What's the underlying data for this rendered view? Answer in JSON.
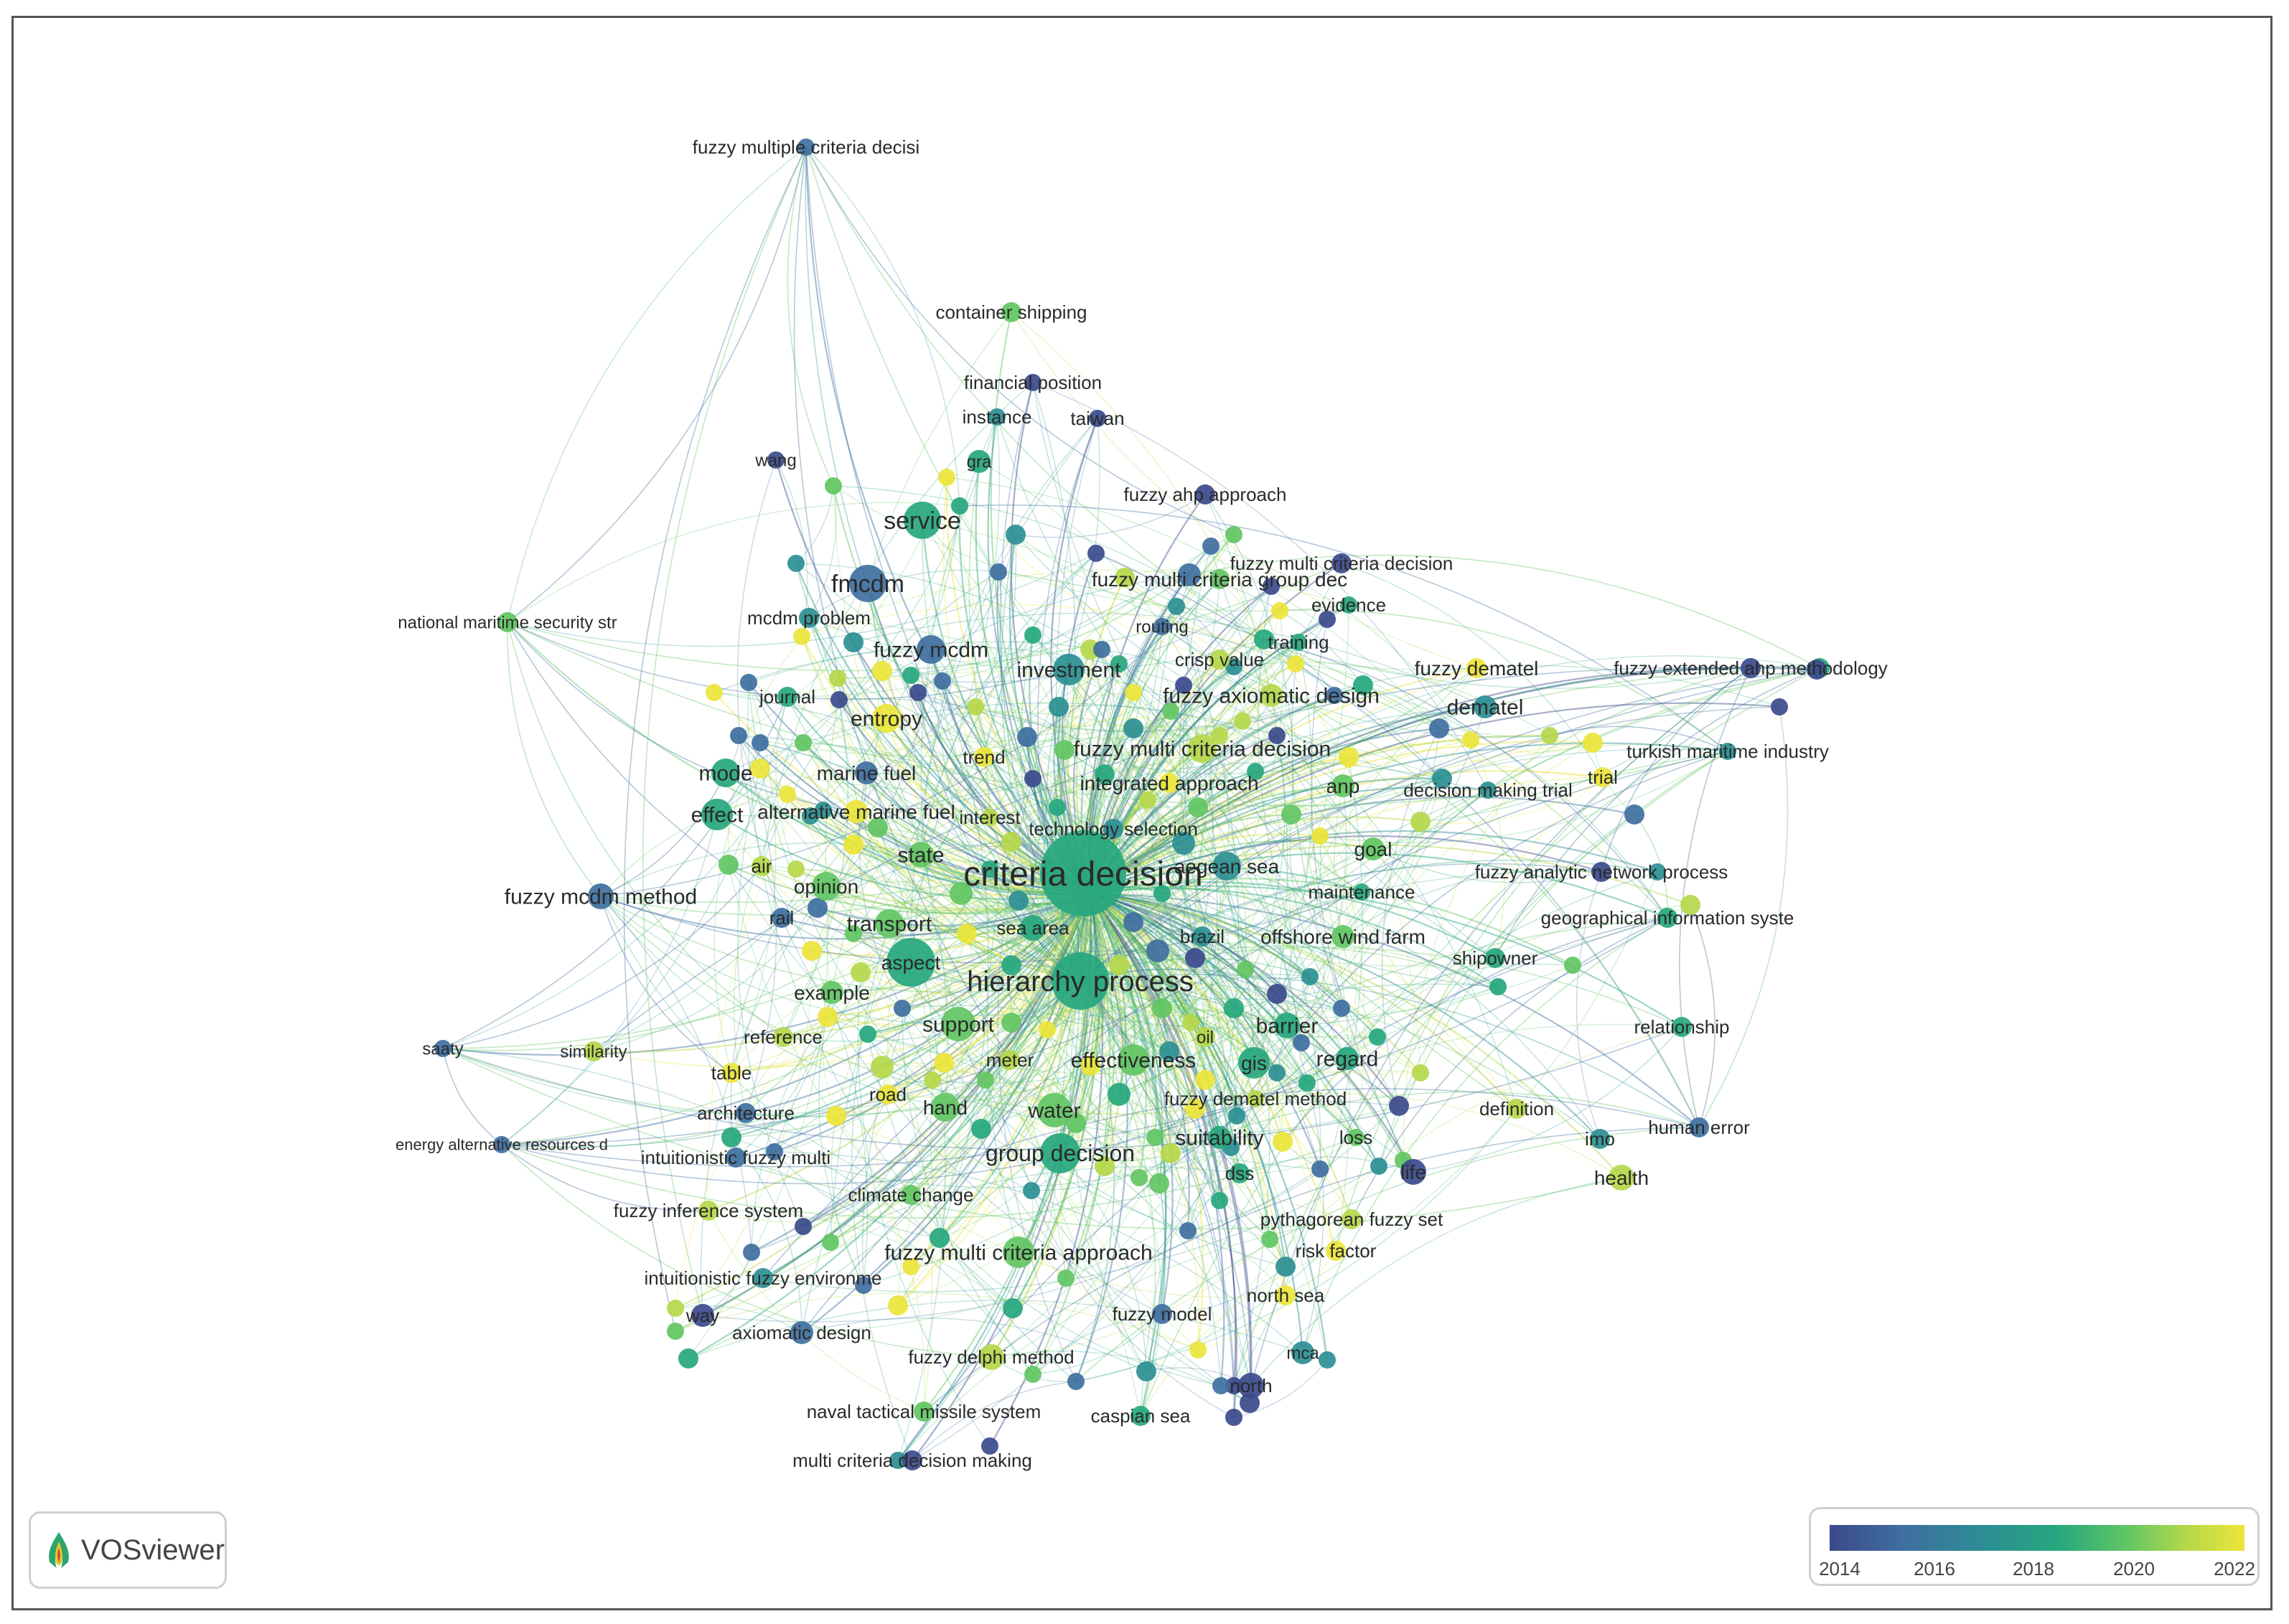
{
  "legend": {
    "ticks": [
      "2014",
      "2016",
      "2018",
      "2020",
      "2022"
    ]
  },
  "brand": {
    "name": "VOSviewer"
  },
  "colors": {
    "scale": [
      "#3b4a8c",
      "#3f6fa0",
      "#2b8f93",
      "#26a77e",
      "#62c663",
      "#b5d84a",
      "#ece53a"
    ]
  },
  "labels": [
    "fuzzy multiple criteria decisi",
    "container shipping",
    "financial position",
    "instance",
    "taiwan",
    "wang",
    "gra",
    "fuzzy ahp approach",
    "service",
    "fuzzy multi criteria decision",
    "fmcdm",
    "fuzzy multi criteria group dec",
    "evidence",
    "national maritime security str",
    "mcdm problem",
    "routing",
    "training",
    "fuzzy mcdm",
    "investment",
    "crisp value",
    "fuzzy dematel",
    "fuzzy extended ahp methodology",
    "journal",
    "fuzzy axiomatic design",
    "entropy",
    "dematel",
    "fuzzy multi criteria decision",
    "turkish maritime industry",
    "trend",
    "mode",
    "marine fuel",
    "integrated approach",
    "anp",
    "decision making trial",
    "trial",
    "effect",
    "alternative marine fuel",
    "interest",
    "technology selection",
    "goal",
    "air",
    "state",
    "criteria decision",
    "aegean sea",
    "fuzzy analytic network process",
    "fuzzy mcdm method",
    "opinion",
    "maintenance",
    "rail",
    "transport",
    "sea area",
    "geographical information syste",
    "brazil",
    "offshore wind farm",
    "aspect",
    "shipowner",
    "hierarchy process",
    "example",
    "relationship",
    "barrier",
    "support",
    "saaty",
    "similarity",
    "reference",
    "oil",
    "table",
    "meter",
    "effectiveness",
    "gis",
    "regard",
    "road",
    "architecture",
    "fuzzy dematel method",
    "hand",
    "water",
    "definition",
    "energy alternative resources d",
    "suitability",
    "loss",
    "imo",
    "human error",
    "intuitionistic fuzzy multi",
    "group decision",
    "life",
    "dss",
    "health",
    "climate change",
    "fuzzy inference system",
    "pythagorean fuzzy set",
    "risk factor",
    "fuzzy multi criteria approach",
    "intuitionistic fuzzy environme",
    "north sea",
    "way",
    "fuzzy model",
    "axiomatic design",
    "fuzzy delphi method",
    "mca",
    "north",
    "naval tactical missile system",
    "caspian sea",
    "multi criteria decision making"
  ]
}
